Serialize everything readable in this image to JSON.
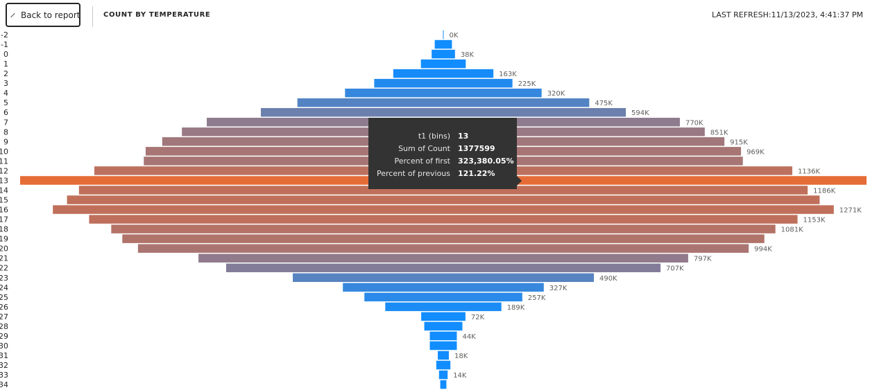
{
  "header": {
    "back_label": "Back to report",
    "title": "COUNT BY TEMPERATURE",
    "refresh": "LAST REFRESH:11/13/2023, 4:41:37 PM"
  },
  "tooltip": {
    "rows": [
      {
        "key": "t1 (bins)",
        "value": "13"
      },
      {
        "key": "Sum of Count",
        "value": "1377599"
      },
      {
        "key": "Percent of first",
        "value": "323,380.05%"
      },
      {
        "key": "Percent of previous",
        "value": "121.22%"
      }
    ]
  },
  "chart_data": {
    "type": "bar",
    "subtype": "funnel",
    "title": "COUNT BY TEMPERATURE",
    "categories": [
      "-2",
      "-1",
      "0",
      "1",
      "2",
      "3",
      "4",
      "5",
      "6",
      "7",
      "8",
      "9",
      "10",
      "11",
      "12",
      "13",
      "14",
      "15",
      "16",
      "17",
      "18",
      "19",
      "20",
      "21",
      "22",
      "23",
      "24",
      "25",
      "26",
      "27",
      "28",
      "29",
      "30",
      "31",
      "32",
      "33",
      "34"
    ],
    "values": [
      426,
      28000,
      38000,
      73000,
      163000,
      225000,
      320000,
      475000,
      594000,
      770000,
      851000,
      915000,
      969000,
      975000,
      1136000,
      1377599,
      1186000,
      1225000,
      1271000,
      1153000,
      1081000,
      1045000,
      994000,
      797000,
      707000,
      490000,
      327000,
      257000,
      189000,
      72000,
      62000,
      44000,
      44000,
      18000,
      23000,
      14000,
      10000
    ],
    "data_labels": [
      "0K",
      "",
      "38K",
      "",
      "163K",
      "225K",
      "320K",
      "475K",
      "594K",
      "770K",
      "851K",
      "915K",
      "969K",
      "",
      "1136K",
      "",
      "1186K",
      "",
      "1271K",
      "1153K",
      "1081K",
      "",
      "994K",
      "797K",
      "707K",
      "490K",
      "327K",
      "257K",
      "189K",
      "72K",
      "",
      "44K",
      "",
      "18K",
      "",
      "14K",
      ""
    ],
    "highlighted": "13",
    "colors": {
      "low": "#118dff",
      "mid": "#8c7b90",
      "high": "#c0705a",
      "highlight": "#e66c37",
      "label": "#605e5c",
      "tick": "#252423"
    }
  }
}
